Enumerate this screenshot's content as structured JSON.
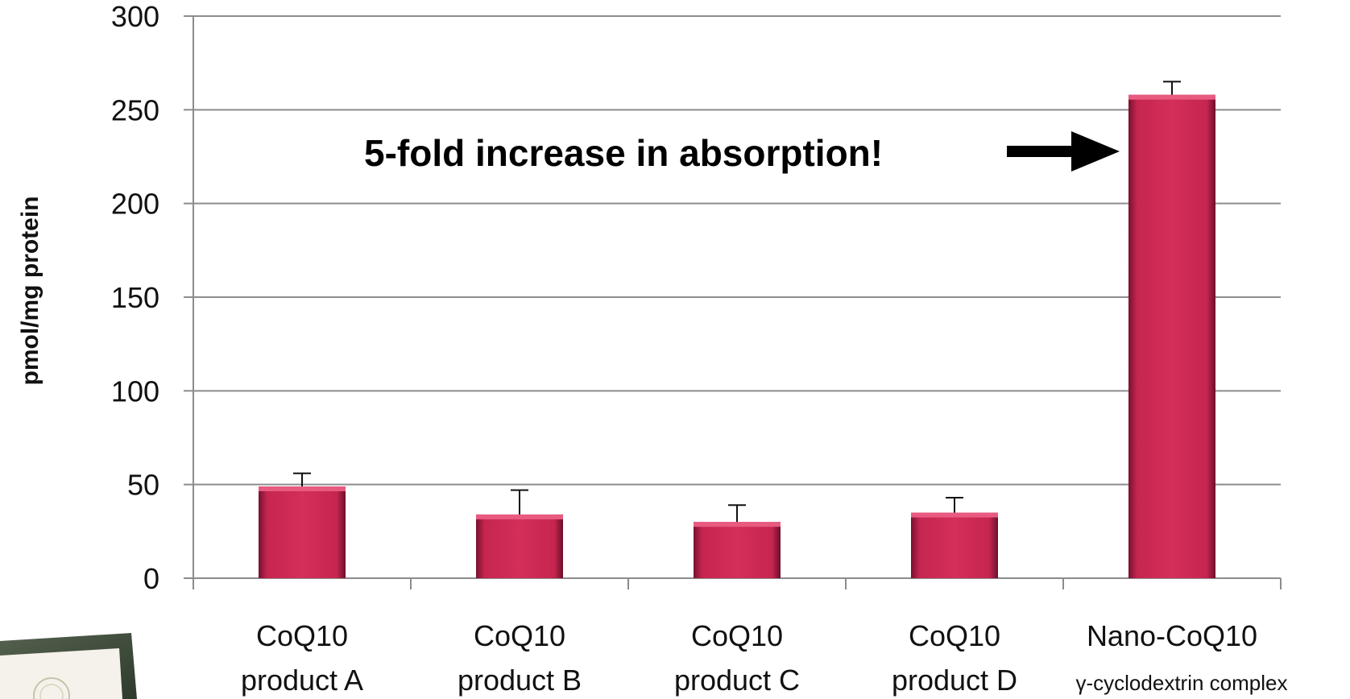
{
  "chart_data": {
    "type": "bar",
    "ylabel": "pmol/mg protein",
    "ylim": [
      0,
      300
    ],
    "yticks": [
      "0",
      "50",
      "100",
      "150",
      "200",
      "250",
      "300"
    ],
    "grid": true,
    "categories": [
      {
        "line1": "CoQ10",
        "line2": "product A",
        "sublabel": ""
      },
      {
        "line1": "CoQ10",
        "line2": "product B",
        "sublabel": ""
      },
      {
        "line1": "CoQ10",
        "line2": "product C",
        "sublabel": ""
      },
      {
        "line1": "CoQ10",
        "line2": "product D",
        "sublabel": ""
      },
      {
        "line1": "Nano-CoQ10",
        "line2": "",
        "sublabel": "γ-cyclodextrin complex"
      }
    ],
    "values": [
      49,
      34,
      30,
      35,
      258
    ],
    "error_upper": [
      56,
      47,
      39,
      43,
      265
    ],
    "bar_color": "#cc2a55",
    "annotation": "5-fold increase in absorption!"
  }
}
